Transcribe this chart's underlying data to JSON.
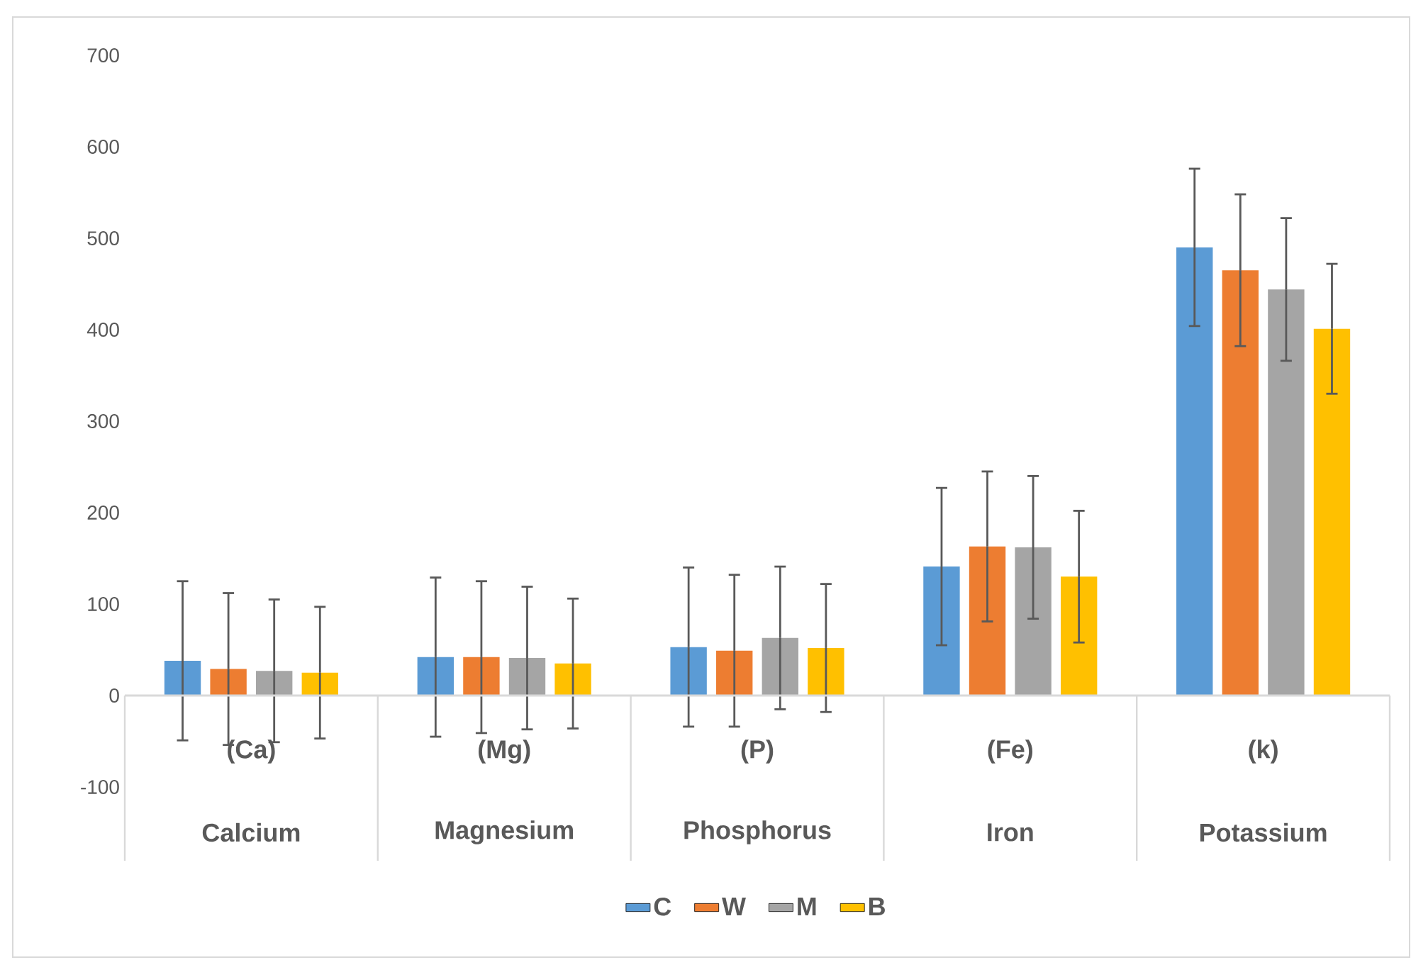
{
  "chart_data": {
    "type": "bar",
    "categories": [
      "(Ca)",
      "(Mg)",
      "(P)",
      "(Fe)",
      "(k)"
    ],
    "annotations": [
      "Calcium",
      "Magnesium",
      "Phosphorus",
      "Iron",
      "Potassium"
    ],
    "series": [
      {
        "name": "C",
        "color": "#5b9bd5",
        "values": [
          38,
          42,
          53,
          141,
          490
        ],
        "errors": [
          87,
          87,
          87,
          86,
          86
        ]
      },
      {
        "name": "W",
        "color": "#ed7d31",
        "values": [
          29,
          42,
          49,
          163,
          465
        ],
        "errors": [
          83,
          83,
          83,
          82,
          83
        ]
      },
      {
        "name": "M",
        "color": "#a5a5a5",
        "values": [
          27,
          41,
          63,
          162,
          444
        ],
        "errors": [
          78,
          78,
          78,
          78,
          78
        ]
      },
      {
        "name": "B",
        "color": "#ffc000",
        "values": [
          25,
          35,
          52,
          130,
          401
        ],
        "errors": [
          72,
          71,
          70,
          72,
          71
        ]
      }
    ],
    "ylim": [
      -100,
      700
    ],
    "yticks": [
      -100,
      0,
      100,
      200,
      300,
      400,
      500,
      600,
      700
    ],
    "legend": "bottom"
  }
}
